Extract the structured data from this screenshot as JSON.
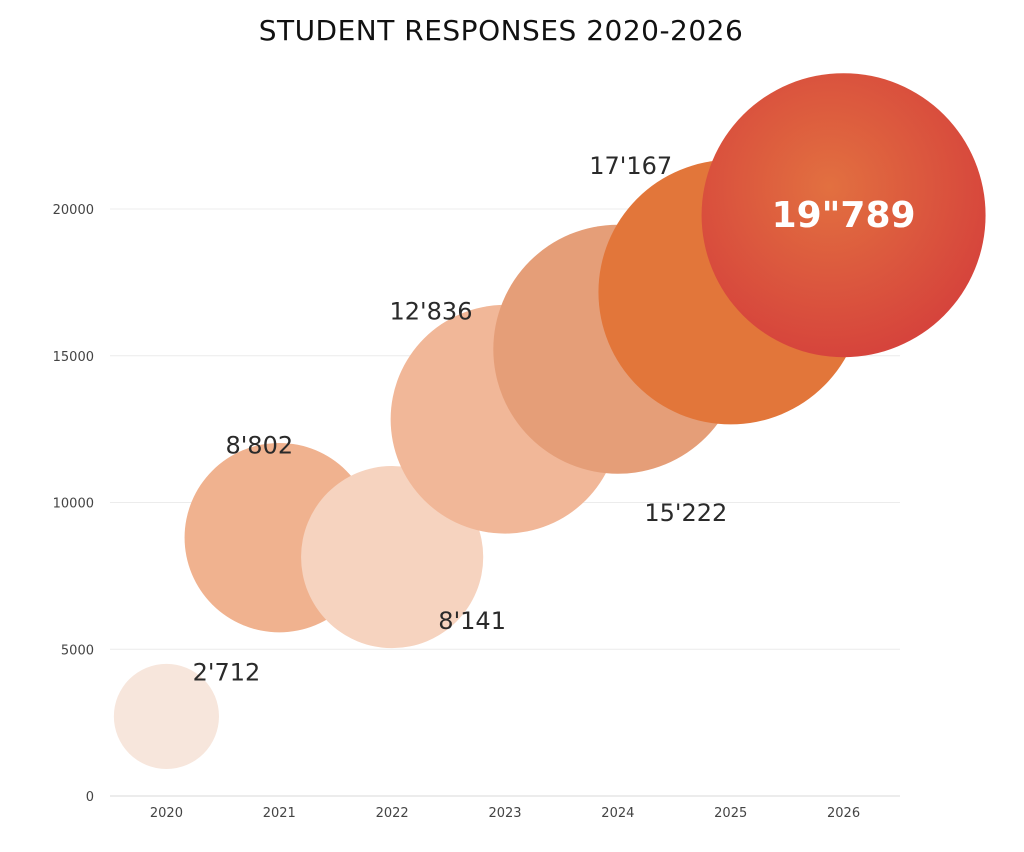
{
  "chart_data": {
    "type": "scatter",
    "title": "STUDENT RESPONSES 2020-2026",
    "xlabel": "",
    "ylabel": "",
    "x_ticks": [
      "2020",
      "2021",
      "2022",
      "2023",
      "2024",
      "2025",
      "2026"
    ],
    "y_ticks": [
      0,
      5000,
      10000,
      15000,
      20000
    ],
    "ylim": [
      0,
      20000
    ],
    "grid": true,
    "points": [
      {
        "x": "2020",
        "y": 2712,
        "label": "2'712",
        "color": "#f7e6dc"
      },
      {
        "x": "2021",
        "y": 8802,
        "label": "8'802",
        "color": "#f0b28f"
      },
      {
        "x": "2022",
        "y": 8141,
        "label": "8'141",
        "color": "#f6d3bf"
      },
      {
        "x": "2023",
        "y": 12836,
        "label": "12'836",
        "color": "#f1b798"
      },
      {
        "x": "2024",
        "y": 15222,
        "label": "15'222",
        "color": "#e59e78"
      },
      {
        "x": "2025",
        "y": 17167,
        "label": "17'167",
        "color": "#e2763a"
      },
      {
        "x": "2026",
        "y": 19789,
        "label": "19\"789",
        "color": "#d94c3c"
      }
    ]
  }
}
